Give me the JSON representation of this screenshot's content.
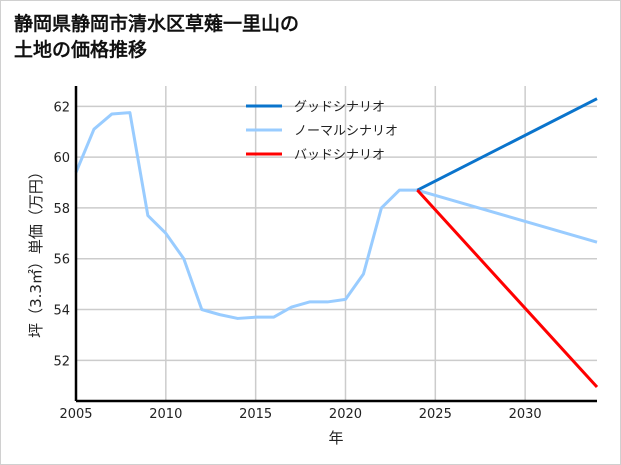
{
  "chart_data": {
    "type": "line",
    "title": "静岡県静岡市清水区草薙一里山の土地の価格推移",
    "title_lines": [
      "静岡県静岡市清水区草薙一里山の",
      "土地の価格推移"
    ],
    "xlabel": "年",
    "ylabel": "坪（3.3㎡）単価（万円）",
    "xlim": [
      2005,
      2034
    ],
    "ylim": [
      50.4,
      62.8
    ],
    "xticks": [
      2005,
      2010,
      2015,
      2020,
      2025,
      2030
    ],
    "yticks": [
      52,
      54,
      56,
      58,
      60,
      62
    ],
    "grid": true,
    "legend_position": "top-center",
    "series": [
      {
        "name": "グッドシナリオ",
        "color": "#0a74cc",
        "x": [
          2024,
          2034
        ],
        "values": [
          58.7,
          62.3
        ]
      },
      {
        "name": "ノーマルシナリオ",
        "color": "#99ccff",
        "x": [
          2005,
          2006,
          2007,
          2008,
          2009,
          2010,
          2011,
          2012,
          2013,
          2014,
          2015,
          2016,
          2017,
          2018,
          2019,
          2020,
          2021,
          2022,
          2023,
          2024,
          2034
        ],
        "values": [
          59.4,
          61.1,
          61.7,
          61.75,
          57.7,
          57.0,
          56.0,
          54.0,
          53.8,
          53.65,
          53.7,
          53.7,
          54.1,
          54.3,
          54.3,
          54.4,
          55.4,
          58.0,
          58.7,
          58.7,
          56.65
        ]
      },
      {
        "name": "バッドシナリオ",
        "color": "#ff0000",
        "x": [
          2024,
          2034
        ],
        "values": [
          58.7,
          50.95
        ]
      }
    ]
  }
}
